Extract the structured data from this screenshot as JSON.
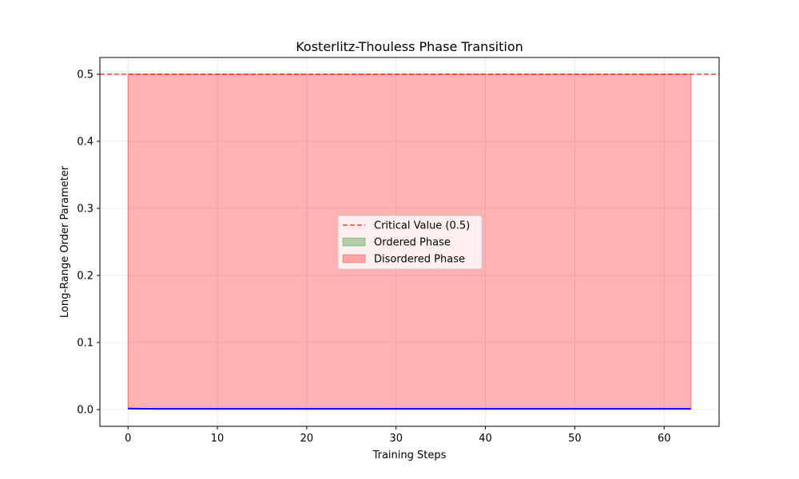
{
  "chart_data": {
    "type": "line",
    "title": "Kosterlitz-Thouless Phase Transition",
    "xlabel": "Training Steps",
    "ylabel": "Long-Range Order Parameter",
    "xlim": [
      -3.15,
      66.15
    ],
    "ylim": [
      -0.025,
      0.525
    ],
    "xticks": [
      0,
      10,
      20,
      30,
      40,
      50,
      60
    ],
    "yticks": [
      0.0,
      0.1,
      0.2,
      0.3,
      0.4,
      0.5
    ],
    "ytick_labels": [
      "0.0",
      "0.1",
      "0.2",
      "0.3",
      "0.4",
      "0.5"
    ],
    "grid": true,
    "legend_placement": "center",
    "series": [
      {
        "kind": "line",
        "color": "#0000ff",
        "x_start": 0,
        "x_end": 63,
        "values": [
          0.0015,
          0.0013,
          0.0012,
          0.0011,
          0.0011,
          0.001,
          0.001,
          0.001,
          0.001,
          0.001,
          0.001,
          0.001,
          0.001,
          0.001,
          0.001,
          0.001,
          0.001,
          0.001,
          0.001,
          0.001,
          0.001,
          0.001,
          0.001,
          0.001,
          0.001,
          0.001,
          0.001,
          0.001,
          0.001,
          0.001,
          0.001,
          0.001,
          0.001,
          0.001,
          0.001,
          0.001,
          0.001,
          0.001,
          0.001,
          0.001,
          0.001,
          0.001,
          0.001,
          0.001,
          0.001,
          0.001,
          0.001,
          0.001,
          0.001,
          0.001,
          0.001,
          0.001,
          0.001,
          0.001,
          0.001,
          0.001,
          0.001,
          0.001,
          0.001,
          0.001,
          0.001,
          0.001,
          0.001,
          0.001
        ]
      }
    ],
    "reference_line": {
      "name": "Critical Value (0.5)",
      "y": 0.5,
      "color": "#ff0000",
      "style": "dashed"
    },
    "fill_regions": [
      {
        "name": "Ordered Phase",
        "color": "#008000",
        "region": "above-critical",
        "visible_area": false
      },
      {
        "name": "Disordered Phase",
        "color": "#ff0000",
        "region": "between-series-and-critical",
        "x_range": [
          0,
          63
        ]
      }
    ],
    "legend": [
      {
        "label": "Critical Value (0.5)",
        "kind": "dashed-line",
        "color": "#ff0000"
      },
      {
        "label": "Ordered Phase",
        "kind": "patch",
        "color": "#008000"
      },
      {
        "label": "Disordered Phase",
        "kind": "patch",
        "color": "#ff0000"
      }
    ]
  }
}
